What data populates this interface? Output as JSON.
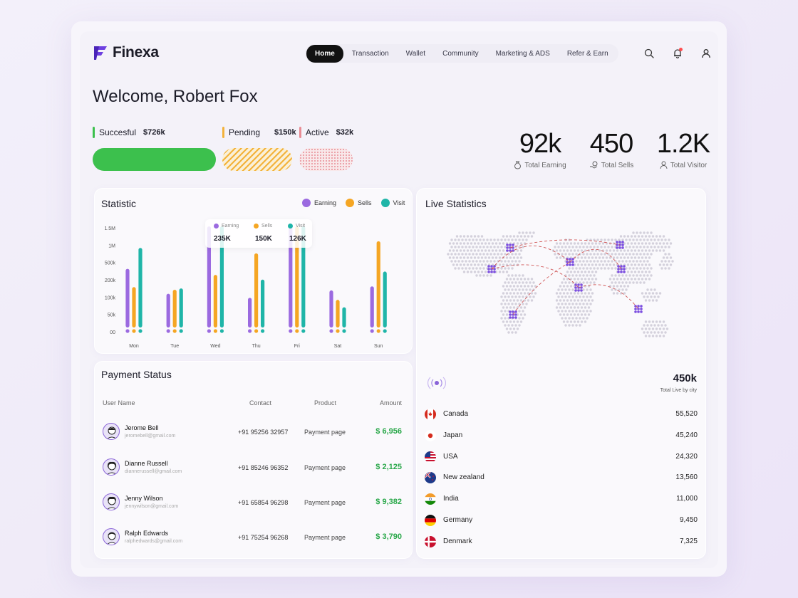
{
  "brand": {
    "name": "Finexa",
    "accent": "#6d3fe0"
  },
  "nav": {
    "items": [
      "Home",
      "Transaction",
      "Wallet",
      "Community",
      "Marketing & ADS",
      "Refer & Earn"
    ],
    "active": "Home"
  },
  "header_icons": [
    "search-icon",
    "bell-icon",
    "user-icon"
  ],
  "welcome": "Welcome, Robert Fox",
  "status": {
    "succesful": {
      "label": "Succesful",
      "value": "$726k",
      "color": "#3cc04d"
    },
    "pending": {
      "label": "Pending",
      "value": "$150k",
      "color": "#f3b23b"
    },
    "active": {
      "label": "Active",
      "value": "$32k",
      "color": "#e88c94"
    }
  },
  "kpis": [
    {
      "value": "92k",
      "label": "Total Earning",
      "icon": "money-bag-icon"
    },
    {
      "value": "450",
      "label": "Total Sells",
      "icon": "coin-hand-icon"
    },
    {
      "value": "1.2K",
      "label": "Total Visitor",
      "icon": "user-icon"
    }
  ],
  "statistic": {
    "title": "Statistic",
    "legend": [
      "Earning",
      "Sells",
      "Visit"
    ],
    "tooltip": {
      "labels": [
        "Earning",
        "Sells",
        "Visit"
      ],
      "values": [
        "235K",
        "150K",
        "126K"
      ]
    }
  },
  "chart_data": {
    "type": "bar",
    "categories": [
      "Mon",
      "Tue",
      "Wed",
      "Thu",
      "Fri",
      "Sat",
      "Sun"
    ],
    "y_ticks": [
      "1.5M",
      "1M",
      "500k",
      "200k",
      "100k",
      "50k",
      "00"
    ],
    "series": [
      {
        "name": "Earning",
        "color": "#9b6ae0",
        "values": [
          0.87,
          0.5,
          1.5,
          0.44,
          1.5,
          0.55,
          0.61
        ]
      },
      {
        "name": "Sells",
        "color": "#f5a623",
        "values": [
          0.6,
          0.56,
          0.78,
          1.1,
          1.5,
          0.41,
          1.28
        ]
      },
      {
        "name": "Visit",
        "color": "#1fb5a8",
        "values": [
          1.18,
          0.58,
          1.5,
          0.71,
          1.5,
          0.3,
          0.83
        ]
      }
    ],
    "ylim": [
      0,
      1.5
    ]
  },
  "payment": {
    "title": "Payment Status",
    "columns": [
      "User Name",
      "Contact",
      "Product",
      "Amount"
    ],
    "rows": [
      {
        "name": "Jerome Bell",
        "email": "jeromebell@gmail.com",
        "contact": "+91 95256 32957",
        "product": "Payment page",
        "amount": "$ 6,956"
      },
      {
        "name": "Dianne Russell",
        "email": "diannerussell@gmail.com",
        "contact": "+91 85246 96352",
        "product": "Payment page",
        "amount": "$ 2,125"
      },
      {
        "name": "Jenny Wilson",
        "email": "jennywilson@gmail.com",
        "contact": "+91 65854 96298",
        "product": "Payment page",
        "amount": "$ 9,382"
      },
      {
        "name": "Ralph Edwards",
        "email": "ralphedwards@gmail.com",
        "contact": "+91 75254 96268",
        "product": "Payment page",
        "amount": "$ 3,790"
      }
    ]
  },
  "live": {
    "title": "Live Statistics",
    "total": "450k",
    "total_label": "Total Live by city",
    "countries": [
      {
        "name": "Canada",
        "value": "55,520",
        "flag": "canada-flag-icon"
      },
      {
        "name": "Japan",
        "value": "45,240",
        "flag": "japan-flag-icon"
      },
      {
        "name": "USA",
        "value": "24,320",
        "flag": "usa-flag-icon"
      },
      {
        "name": "New zealand",
        "value": "13,560",
        "flag": "new-zealand-flag-icon"
      },
      {
        "name": "India",
        "value": "11,000",
        "flag": "india-flag-icon"
      },
      {
        "name": "Germany",
        "value": "9,450",
        "flag": "germany-flag-icon"
      },
      {
        "name": "Denmark",
        "value": "7,325",
        "flag": "denmark-flag-icon"
      }
    ]
  }
}
